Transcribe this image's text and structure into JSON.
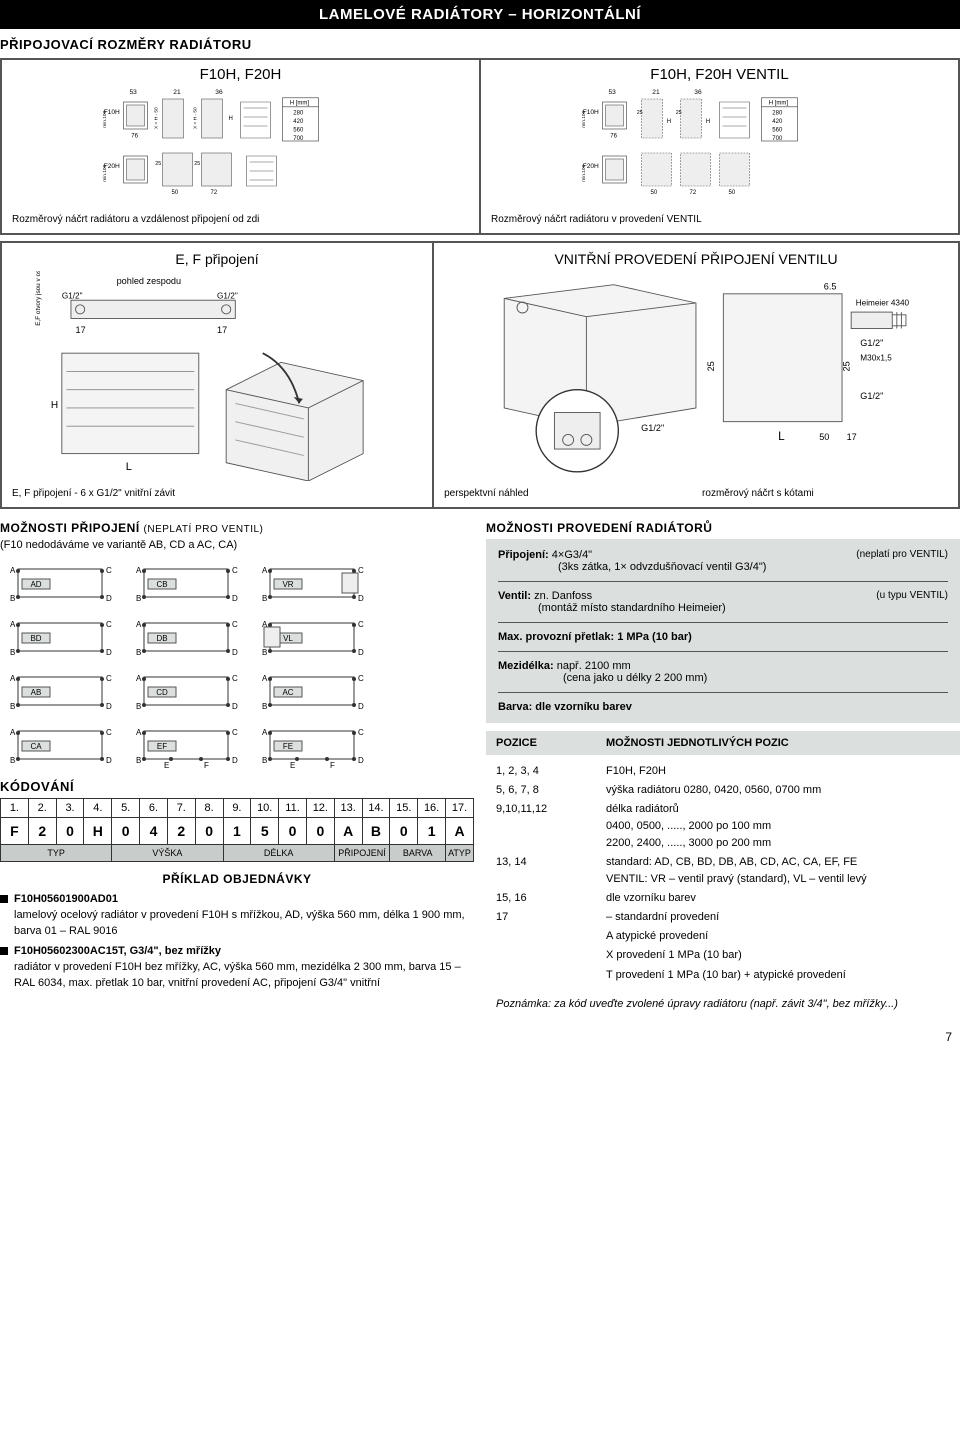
{
  "header": "LAMELOVÉ RADIÁTORY – HORIZONTÁLNÍ",
  "subheader": "PŘIPOJOVACÍ ROZMĚRY RADIÁTORU",
  "top_diag": {
    "left_title": "F10H, F20H",
    "right_title": "F10H, F20H  VENTIL",
    "h_label": "H [mm]",
    "h_values": [
      "280",
      "420",
      "560",
      "700"
    ],
    "dims": {
      "a": "53",
      "b": "21",
      "c": "36",
      "d": "76",
      "e": "25",
      "f": "50",
      "g": "72",
      "x": "X = H - 50"
    },
    "labels": {
      "f10h": "F10H",
      "f20h": "F20H",
      "min100": "min.100",
      "H": "H"
    },
    "caption_left": "Rozměrový náčrt radiátoru a vzdálenost připojení od zdi",
    "caption_right": "Rozměrový náčrt radiátoru v provedení VENTIL"
  },
  "mid_diag": {
    "left_title": "E, F připojení",
    "right_title": "VNITŘNÍ PROVEDENÍ PŘIPOJENÍ VENTILU",
    "pohled": "pohled zespodu",
    "g12": "G1/2\"",
    "d17": "17",
    "d65": "6.5",
    "d25": "25",
    "d50": "50",
    "heimeier": "Heimeier 4340",
    "m30": "M30x1,5",
    "L": "L",
    "H": "H",
    "left_note": "E,F otvory jsou\nv ose s bočními",
    "caption_left": "E, F připojení - 6 x G1/2\" vnitřní závit",
    "caption_mid": "perspektvní náhled",
    "caption_right": "rozměrový náčrt s kótami"
  },
  "moznosti_pripojeni": {
    "title": "MOŽNOSTI PŘIPOJENÍ",
    "note": "(NEPLATÍ PRO VENTIL)",
    "sub": "(F10 nedodáváme ve variantě AB, CD a AC, CA)",
    "variants": [
      "AD",
      "CB",
      "VR",
      "BD",
      "DB",
      "VL",
      "AB",
      "CD",
      "AC",
      "CA",
      "EF",
      "FE"
    ],
    "corners": {
      "A": "A",
      "B": "B",
      "C": "C",
      "D": "D",
      "E": "E",
      "F": "F"
    }
  },
  "moznosti_provedeni": {
    "title": "MOŽNOSTI PROVEDENÍ RADIÁTORŮ",
    "r1_label": "Připojení:",
    "r1_val": "4×G3/4\"",
    "r1_sub": "(3ks zátka, 1× odvzdušňovací ventil G3/4\")",
    "r1_note": "(neplatí pro VENTIL)",
    "r2_label": "Ventil:",
    "r2_val": "zn. Danfoss",
    "r2_sub": "(montáž místo standardního Heimeier)",
    "r2_note": "(u typu VENTIL)",
    "r3": "Max. provozní přetlak: 1 MPa (10 bar)",
    "r4_label": "Mezidélka:",
    "r4_val": "např. 2100 mm",
    "r4_sub": "(cena jako u délky 2 200 mm)",
    "r5": "Barva: dle vzorníku barev"
  },
  "kodovani": {
    "title": "KÓDOVÁNÍ",
    "nums": [
      "1.",
      "2.",
      "3.",
      "4.",
      "5.",
      "6.",
      "7.",
      "8.",
      "9.",
      "10.",
      "11.",
      "12.",
      "13.",
      "14.",
      "15.",
      "16.",
      "17."
    ],
    "vals": [
      "F",
      "2",
      "0",
      "H",
      "0",
      "4",
      "2",
      "0",
      "1",
      "5",
      "0",
      "0",
      "A",
      "B",
      "0",
      "1",
      "A"
    ],
    "lbls": [
      {
        "t": "TYP",
        "span": 4
      },
      {
        "t": "VÝŠKA",
        "span": 4
      },
      {
        "t": "DÉLKA",
        "span": 4
      },
      {
        "t": "PŘIPOJENÍ",
        "span": 2
      },
      {
        "t": "BARVA",
        "span": 2
      },
      {
        "t": "ATYP",
        "span": 1
      }
    ]
  },
  "priklad": {
    "title": "PŘÍKLAD OBJEDNÁVKY",
    "i1_code": "F10H05601900AD01",
    "i1_text": "lamelový ocelový radiátor v provedení F10H s mřížkou, AD, výška 560 mm, délka 1 900 mm, barva 01 – RAL 9016",
    "i2_code": "F10H05602300AC15T, G3/4\", bez mřížky",
    "i2_text": "radiátor v provedení F10H bez mřížky, AC, výška 560 mm, mezidélka 2 300 mm, barva 15 – RAL 6034, max. přetlak 10 bar, vnitřní provedení AC, připojení G3/4\" vnitřní"
  },
  "pozice": {
    "h1": "POZICE",
    "h2": "MOŽNOSTI JEDNOTLIVÝCH POZIC",
    "rows": [
      {
        "k": "1, 2, 3, 4",
        "v": "F10H, F20H"
      },
      {
        "k": "5, 6, 7, 8",
        "v": "výška radiátoru 0280, 0420, 0560, 0700 mm"
      },
      {
        "k": "9,10,11,12",
        "v": "délka radiátorů\n0400, 0500, ....., 2000 po 100 mm\n2200, 2400, ....., 3000 po 200 mm"
      },
      {
        "k": "13, 14",
        "v": "standard: AD, CB, BD, DB, AB, CD, AC, CA, EF, FE\nVENTIL: VR – ventil pravý (standard), VL – ventil levý"
      },
      {
        "k": "15, 16",
        "v": "dle vzorníku barev"
      },
      {
        "k": "17",
        "v": "–    standardní provedení"
      },
      {
        "k": "",
        "v": "A    atypické provedení"
      },
      {
        "k": "",
        "v": "X    provedení 1 MPa (10 bar)"
      },
      {
        "k": "",
        "v": "T    provedení 1 MPa (10 bar) + atypické provedení"
      }
    ],
    "note": "Poznámka: za kód uveďte zvolené úpravy radiátoru (např. závit 3/4\", bez mřížky...)"
  },
  "page": "7",
  "colors": {
    "grey": "#dbe0de",
    "line": "#333",
    "light": "#eee"
  }
}
